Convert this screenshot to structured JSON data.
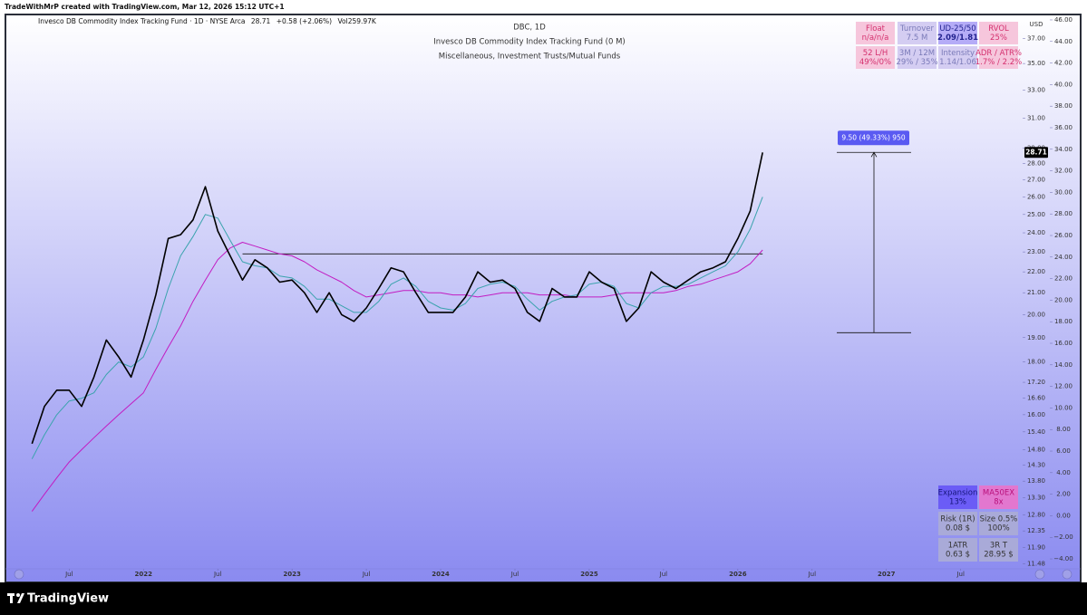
{
  "watermark": "TradeWithMrP created with TradingView.com, Mar 12, 2026 15:12 UTC+1",
  "header": {
    "symbol": "Invesco DB Commodity Index Tracking Fund · 1D · NYSE Arca",
    "change": "+0.58 (+2.06%)",
    "volume": "Vol259.97K"
  },
  "footer": {
    "brand": "TradingView"
  },
  "indicator_table": [
    {
      "label": "Float",
      "value": "n/a/n/a"
    },
    {
      "label": "Turnover",
      "value": "7.5 M"
    },
    {
      "label": "UD-25/50",
      "value": "2.09/1.81"
    },
    {
      "label": "RVOL",
      "value": "25%"
    },
    {
      "label": "52 L/H",
      "value": "49%/0%"
    },
    {
      "label": "3M / 12M",
      "value": "29% / 35%"
    },
    {
      "label": "Intensity",
      "value": "1.14/1.06"
    },
    {
      "label": "ADR / ATR%",
      "value": "1.7% / 2.2%"
    }
  ],
  "risk_table": [
    {
      "label": "Expansion",
      "value": "13%"
    },
    {
      "label": "MA50EX",
      "value": "8x"
    },
    {
      "label": "Risk (1R)",
      "value": "0.08 $"
    },
    {
      "label": "Size 0.5%",
      "value": "100%"
    },
    {
      "label": "1ATR",
      "value": "0.63 $"
    },
    {
      "label": "3R T",
      "value": "28.95 $"
    }
  ],
  "chart_data": {
    "type": "line",
    "title": "DBC, 1D",
    "subtitle": "Invesco DB Commodity Index Tracking Fund (0 M)",
    "category": "Miscellaneous, Investment Trusts/Mutual Funds",
    "currency": "USD",
    "log_scale": true,
    "grid": false,
    "x": [
      "2021-04",
      "2021-05",
      "2021-06",
      "2021-07",
      "2021-08",
      "2021-09",
      "2021-10",
      "2021-11",
      "2021-12",
      "2022-01",
      "2022-02",
      "2022-03",
      "2022-04",
      "2022-05",
      "2022-06",
      "2022-07",
      "2022-08",
      "2022-09",
      "2022-10",
      "2022-11",
      "2022-12",
      "2023-01",
      "2023-02",
      "2023-03",
      "2023-04",
      "2023-05",
      "2023-06",
      "2023-07",
      "2023-08",
      "2023-09",
      "2023-10",
      "2023-11",
      "2023-12",
      "2024-01",
      "2024-02",
      "2024-03",
      "2024-04",
      "2024-05",
      "2024-06",
      "2024-07",
      "2024-08",
      "2024-09",
      "2024-10",
      "2024-11",
      "2024-12",
      "2025-01",
      "2025-02",
      "2025-03",
      "2025-04",
      "2025-05",
      "2025-06",
      "2025-07",
      "2025-08",
      "2025-09",
      "2025-10",
      "2025-11",
      "2025-12",
      "2026-01",
      "2026-02",
      "2026-03"
    ],
    "series": [
      {
        "color": "#000000",
        "values": [
          15.0,
          16.3,
          16.9,
          16.9,
          16.3,
          17.4,
          18.9,
          18.2,
          17.4,
          18.9,
          20.9,
          23.7,
          23.9,
          24.7,
          26.6,
          24.1,
          22.8,
          21.6,
          22.6,
          22.2,
          21.5,
          21.6,
          21.0,
          20.1,
          21.0,
          20.0,
          19.7,
          20.3,
          21.2,
          22.2,
          22.0,
          21.0,
          20.1,
          20.1,
          20.1,
          20.8,
          22.0,
          21.5,
          21.6,
          21.2,
          20.1,
          19.7,
          21.2,
          20.8,
          20.8,
          22.0,
          21.5,
          21.2,
          19.7,
          20.3,
          22.0,
          21.5,
          21.2,
          21.6,
          22.0,
          22.2,
          22.5,
          23.7,
          25.2,
          28.71
        ]
      },
      {
        "color": "#3aa3ad",
        "values": [
          14.5,
          15.3,
          16.0,
          16.5,
          16.6,
          16.8,
          17.5,
          18.0,
          17.8,
          18.2,
          19.4,
          21.2,
          22.8,
          23.8,
          25.0,
          24.8,
          23.6,
          22.5,
          22.3,
          22.2,
          21.8,
          21.7,
          21.3,
          20.7,
          20.7,
          20.4,
          20.1,
          20.1,
          20.6,
          21.4,
          21.7,
          21.3,
          20.6,
          20.3,
          20.2,
          20.5,
          21.2,
          21.4,
          21.5,
          21.3,
          20.7,
          20.2,
          20.6,
          20.8,
          20.9,
          21.4,
          21.5,
          21.3,
          20.5,
          20.3,
          21.0,
          21.3,
          21.3,
          21.4,
          21.7,
          22.0,
          22.3,
          23.0,
          24.2,
          26.0
        ]
      },
      {
        "color": "#c21cc2",
        "values": [
          12.9,
          13.4,
          13.9,
          14.4,
          14.8,
          15.2,
          15.6,
          16.0,
          16.4,
          16.8,
          17.7,
          18.6,
          19.5,
          20.6,
          21.6,
          22.6,
          23.2,
          23.5,
          23.3,
          23.1,
          22.9,
          22.8,
          22.5,
          22.1,
          21.8,
          21.5,
          21.1,
          20.8,
          20.9,
          21.0,
          21.1,
          21.1,
          21.0,
          21.0,
          20.9,
          20.9,
          20.8,
          20.9,
          21.0,
          21.0,
          21.0,
          20.9,
          20.9,
          20.9,
          20.8,
          20.8,
          20.8,
          20.9,
          21.0,
          21.0,
          21.0,
          21.0,
          21.1,
          21.3,
          21.4,
          21.6,
          21.8,
          22.0,
          22.4,
          23.1
        ]
      }
    ],
    "level_line": {
      "value": 22.9,
      "from": "2022-09",
      "to": "2026-03"
    },
    "measure": {
      "label": "9.50 (49.33%) 950",
      "from": 19.21,
      "to": 28.71
    },
    "xlim": [
      "2021-02",
      "2027-12"
    ],
    "xticks": [
      {
        "value": "2021-07",
        "label": "Jul"
      },
      {
        "value": "2022-01",
        "label": "2022"
      },
      {
        "value": "2022-07",
        "label": "Jul"
      },
      {
        "value": "2023-01",
        "label": "2023"
      },
      {
        "value": "2023-07",
        "label": "Jul"
      },
      {
        "value": "2024-01",
        "label": "2024"
      },
      {
        "value": "2024-07",
        "label": "Jul"
      },
      {
        "value": "2025-01",
        "label": "2025"
      },
      {
        "value": "2025-07",
        "label": "Jul"
      },
      {
        "value": "2026-01",
        "label": "2026"
      },
      {
        "value": "2026-07",
        "label": "Jul"
      },
      {
        "value": "2027-01",
        "label": "2027"
      },
      {
        "value": "2027-07",
        "label": "Jul"
      }
    ],
    "ylim": [
      11.35,
      39.2
    ],
    "yticks": [
      {
        "value": 37,
        "label": "37.00"
      },
      {
        "value": 35,
        "label": "35.00"
      },
      {
        "value": 33,
        "label": "33.00"
      },
      {
        "value": 31,
        "label": "31.00"
      },
      {
        "value": 29,
        "label": "29.00"
      },
      {
        "value": 28,
        "label": "28.00"
      },
      {
        "value": 27,
        "label": "27.00"
      },
      {
        "value": 26,
        "label": "26.00"
      },
      {
        "value": 25,
        "label": "25.00"
      },
      {
        "value": 24,
        "label": "24.00"
      },
      {
        "value": 23,
        "label": "23.00"
      },
      {
        "value": 22,
        "label": "22.00"
      },
      {
        "value": 21,
        "label": "21.00"
      },
      {
        "value": 20,
        "label": "20.00"
      },
      {
        "value": 19,
        "label": "19.00"
      },
      {
        "value": 18,
        "label": "18.00"
      },
      {
        "value": 17.2,
        "label": "17.20"
      },
      {
        "value": 16.6,
        "label": "16.60"
      },
      {
        "value": 16,
        "label": "16.00"
      },
      {
        "value": 15.4,
        "label": "15.40"
      },
      {
        "value": 14.8,
        "label": "14.80"
      },
      {
        "value": 14.3,
        "label": "14.30"
      },
      {
        "value": 13.8,
        "label": "13.80"
      },
      {
        "value": 13.3,
        "label": "13.30"
      },
      {
        "value": 12.8,
        "label": "12.80"
      },
      {
        "value": 12.35,
        "label": "12.35"
      },
      {
        "value": 11.9,
        "label": "11.90"
      },
      {
        "value": 11.48,
        "label": "11.48"
      }
    ],
    "y2lim": [
      -4.92,
      46.67
    ],
    "y2ticks": [
      {
        "value": 46,
        "label": "46.00"
      },
      {
        "value": 44,
        "label": "44.00"
      },
      {
        "value": 42,
        "label": "42.00"
      },
      {
        "value": 40,
        "label": "40.00"
      },
      {
        "value": 38,
        "label": "38.00"
      },
      {
        "value": 36,
        "label": "36.00"
      },
      {
        "value": 34,
        "label": "34.00"
      },
      {
        "value": 32,
        "label": "32.00"
      },
      {
        "value": 30,
        "label": "30.00"
      },
      {
        "value": 28,
        "label": "28.00"
      },
      {
        "value": 26,
        "label": "26.00"
      },
      {
        "value": 24,
        "label": "24.00"
      },
      {
        "value": 22,
        "label": "22.00"
      },
      {
        "value": 20,
        "label": "20.00"
      },
      {
        "value": 18,
        "label": "18.00"
      },
      {
        "value": 16,
        "label": "16.00"
      },
      {
        "value": 14,
        "label": "14.00"
      },
      {
        "value": 12,
        "label": "12.00"
      },
      {
        "value": 10,
        "label": "10.00"
      },
      {
        "value": 8,
        "label": "8.00"
      },
      {
        "value": 6,
        "label": "6.00"
      },
      {
        "value": 4,
        "label": "4.00"
      },
      {
        "value": 2,
        "label": "2.00"
      },
      {
        "value": 0,
        "label": "0.00"
      },
      {
        "value": -2,
        "label": "−2.00"
      },
      {
        "value": -4,
        "label": "−4.00"
      }
    ]
  }
}
